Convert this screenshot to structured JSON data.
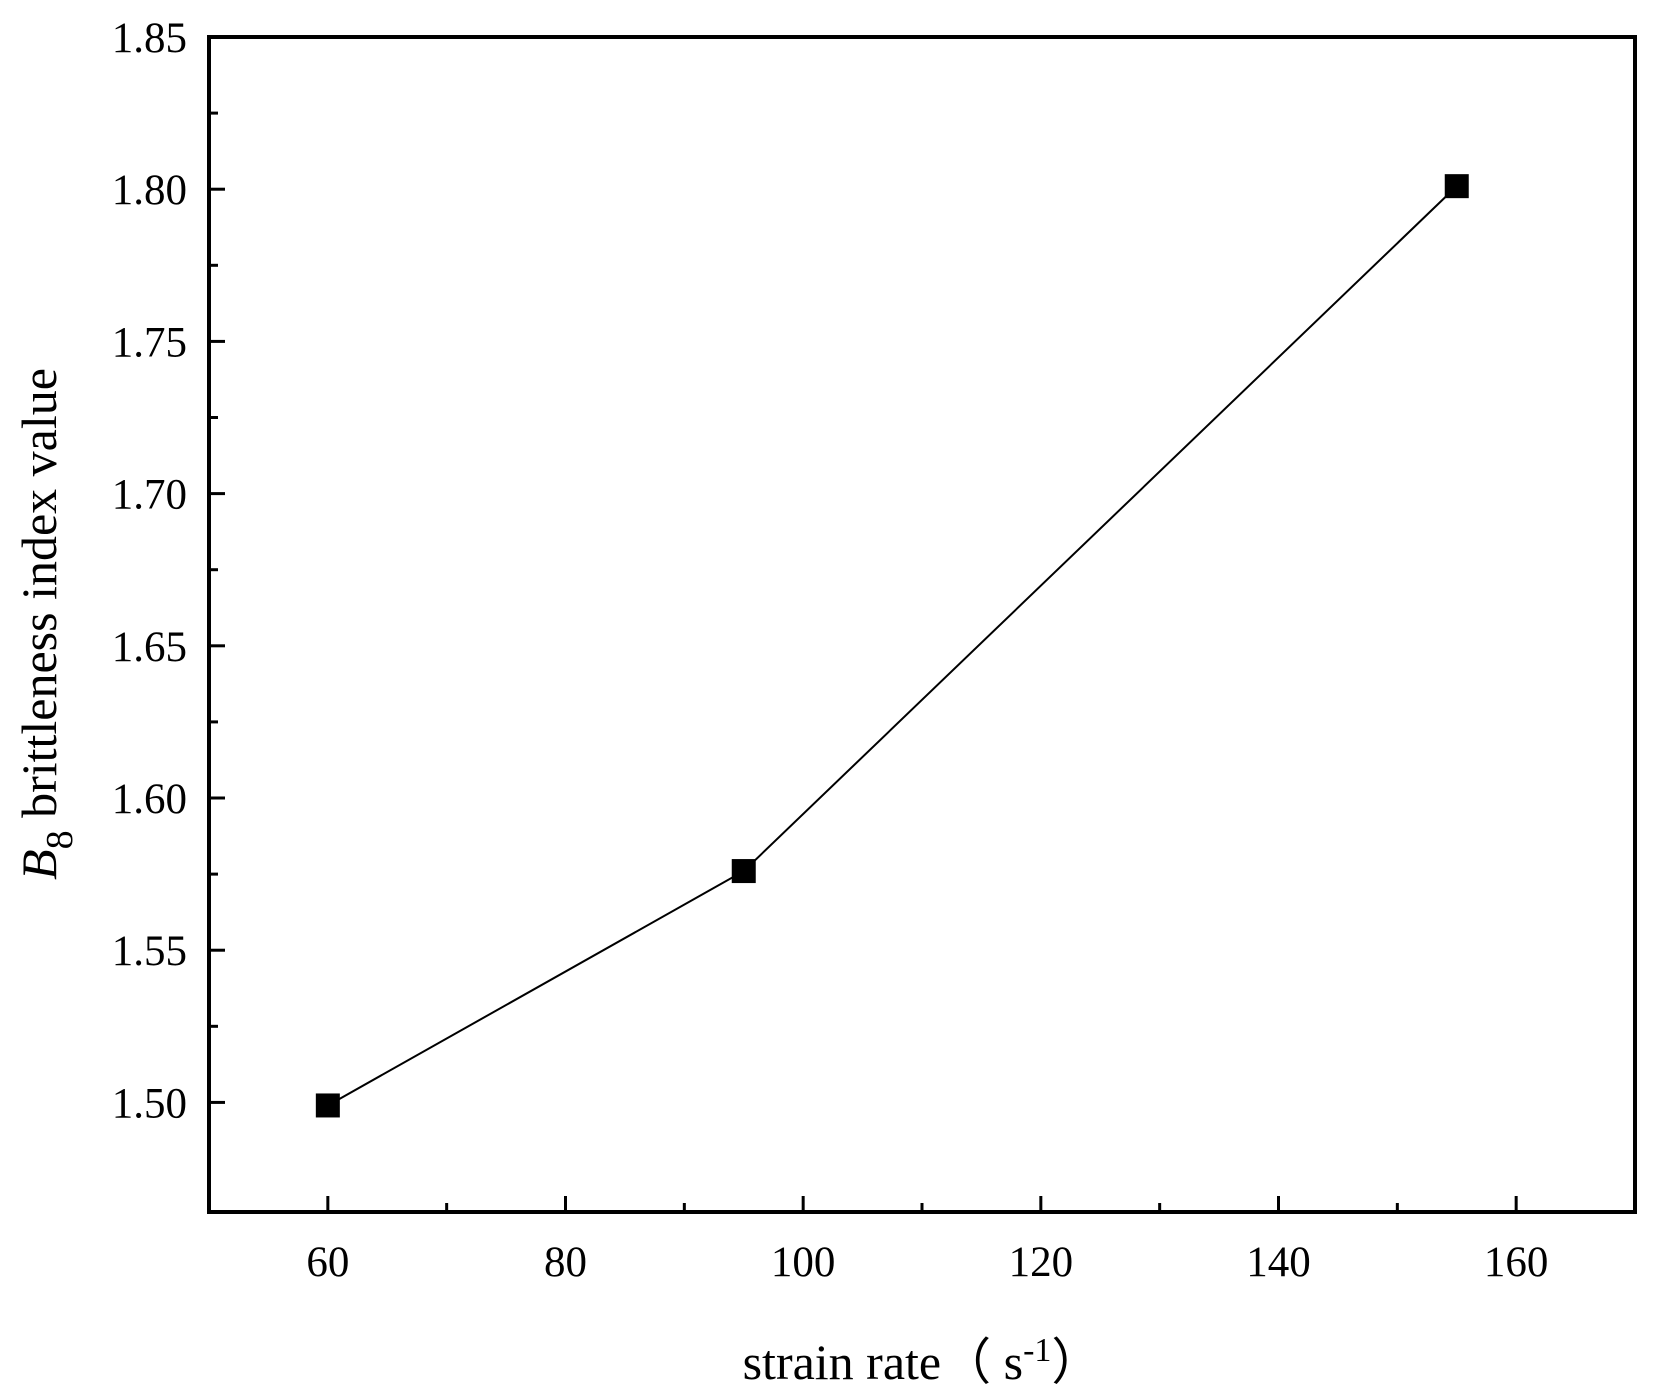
{
  "chart_data": {
    "type": "line",
    "title": "",
    "xlabel": "strain rate（ s-1）",
    "xlabel_parts": {
      "prefix": "strain rate（  s",
      "sup": "-1",
      "suffix": "）"
    },
    "ylabel": "B8 brittleness index value",
    "ylabel_parts": {
      "sym": "B",
      "sub": "8",
      "rest": " brittleness index value"
    },
    "xlim": [
      50,
      170
    ],
    "ylim": [
      1.464,
      1.85
    ],
    "x_ticks": [
      {
        "value": 60,
        "label": "60"
      },
      {
        "value": 80,
        "label": "80"
      },
      {
        "value": 100,
        "label": "100"
      },
      {
        "value": 120,
        "label": "120"
      },
      {
        "value": 140,
        "label": "140"
      },
      {
        "value": 160,
        "label": "160"
      }
    ],
    "x_minor_ticks": [
      70,
      90,
      110,
      130,
      150
    ],
    "y_ticks": [
      {
        "value": 1.5,
        "label": "1.50"
      },
      {
        "value": 1.55,
        "label": "1.55"
      },
      {
        "value": 1.6,
        "label": "1.60"
      },
      {
        "value": 1.65,
        "label": "1.65"
      },
      {
        "value": 1.7,
        "label": "1.70"
      },
      {
        "value": 1.75,
        "label": "1.75"
      },
      {
        "value": 1.8,
        "label": "1.80"
      },
      {
        "value": 1.85,
        "label": "1.85"
      }
    ],
    "y_minor_ticks": [
      1.525,
      1.575,
      1.625,
      1.675,
      1.725,
      1.775,
      1.825
    ],
    "grid": false,
    "legend": "none",
    "series": [
      {
        "marker": "square",
        "color": "#000000",
        "points": [
          {
            "x": 60,
            "y": 1.499
          },
          {
            "x": 95,
            "y": 1.576
          },
          {
            "x": 155,
            "y": 1.801
          }
        ]
      }
    ]
  }
}
